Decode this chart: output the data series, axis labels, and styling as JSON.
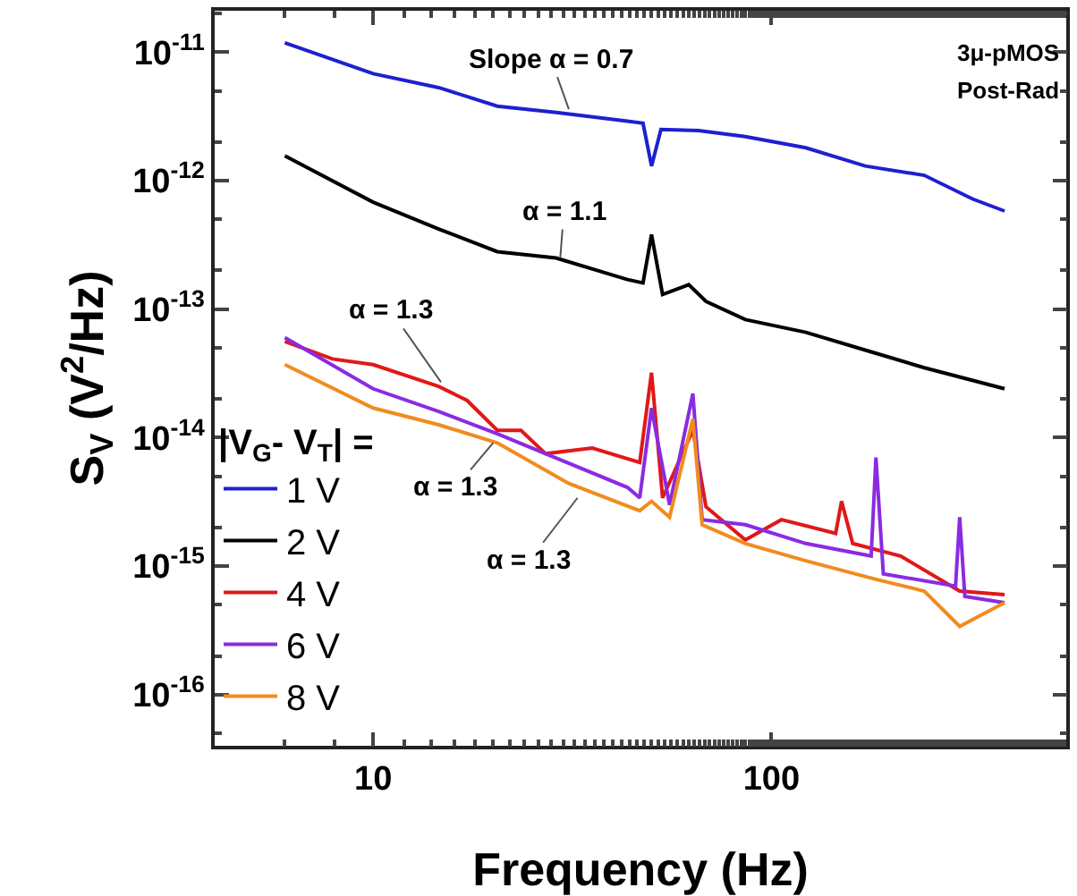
{
  "chart_data": {
    "type": "line",
    "xlabel": "Frequency (Hz)",
    "ylabel": "S$_{V}$ (V$^{2}$/Hz)",
    "legend_title": "|V$_{G}$- V$_{T}$| =",
    "legend": "bottom left",
    "log": "xy",
    "grid": false,
    "marker": "none",
    "line_style": "solid",
    "xlim": [
      4,
      550
    ],
    "xticks": [
      10,
      100
    ],
    "ylim": [
      4e-17,
      2.1e-11
    ],
    "yticks": [
      {
        "value": 1e-11,
        "label": "10$^{-11}$"
      },
      {
        "value": 1e-12,
        "label": "10$^{-12}$"
      },
      {
        "value": 1e-13,
        "label": "10$^{-13}$"
      },
      {
        "value": 1e-14,
        "label": "10$^{-14}$"
      },
      {
        "value": 1e-15,
        "label": "10$^{-15}$"
      },
      {
        "value": 1e-16,
        "label": "10$^{-16}$"
      }
    ],
    "annotations": [
      {
        "text": "Slope α = 0.7",
        "x": 31,
        "y": 3.6e-12
      },
      {
        "text": "α = 1.1",
        "x": 29.5,
        "y": 2.5e-13
      },
      {
        "text": "α = 1.3",
        "x": 14.8,
        "y": 2.7e-14
      },
      {
        "text": "α = 1.3",
        "x": 20,
        "y": 9.1e-15
      },
      {
        "text": "α = 1.3",
        "x": 32.6,
        "y": 3.4e-15
      },
      "3μ-pMOS",
      "Post-Rad"
    ],
    "series": [
      {
        "name": "1 V",
        "color": "#1f1fd0",
        "x": [
          6,
          10,
          14.6,
          20.5,
          28.8,
          43.5,
          47.6,
          50,
          52.8,
          65.6,
          86,
          122,
          172,
          242,
          320,
          385
        ],
        "values": [
          1.18e-11,
          6.8e-12,
          5.3e-12,
          3.8e-12,
          3.4e-12,
          2.9e-12,
          2.8e-12,
          1.3e-12,
          2.5e-12,
          2.45e-12,
          2.2e-12,
          1.8e-12,
          1.3e-12,
          1.1e-12,
          7.2e-13,
          5.8e-13
        ]
      },
      {
        "name": "2 V",
        "color": "#000000",
        "x": [
          6,
          10,
          14.6,
          20.5,
          28.8,
          43.5,
          47.6,
          50,
          53.3,
          62,
          68.5,
          86,
          122,
          172,
          242,
          385
        ],
        "values": [
          1.56e-12,
          6.8e-13,
          4.2e-13,
          2.8e-13,
          2.5e-13,
          1.7e-13,
          1.6e-13,
          3.8e-13,
          1.3e-13,
          1.55e-13,
          1.15e-13,
          8.3e-14,
          6.6e-14,
          4.8e-14,
          3.5e-14,
          2.4e-14
        ]
      },
      {
        "name": "4 V",
        "color": "#e01818",
        "x": [
          6,
          7.9,
          10,
          14.6,
          17.2,
          20.5,
          23.5,
          27.1,
          35.5,
          46.7,
          50,
          53.3,
          63.5,
          68.5,
          86,
          106,
          145,
          150,
          160,
          211,
          297,
          385
        ],
        "values": [
          5.6e-14,
          4.1e-14,
          3.7e-14,
          2.5e-14,
          1.95e-14,
          1.14e-14,
          1.14e-14,
          7.5e-15,
          8.3e-15,
          6.4e-15,
          3.2e-14,
          3.4e-15,
          1.14e-14,
          2.9e-15,
          1.6e-15,
          2.3e-15,
          1.8e-15,
          3.2e-15,
          1.5e-15,
          1.2e-15,
          6.4e-16,
          6e-16
        ]
      },
      {
        "name": "6 V",
        "color": "#8a2be2",
        "x": [
          6,
          10,
          14.6,
          20.5,
          27.1,
          43.5,
          46.7,
          50,
          55.5,
          63.5,
          67,
          86,
          122,
          178,
          183,
          191,
          290,
          297,
          306,
          385
        ],
        "values": [
          6e-14,
          2.4e-14,
          1.6e-14,
          1.07e-14,
          7.5e-15,
          4.1e-15,
          3.4e-15,
          1.7e-14,
          3e-15,
          2.2e-14,
          2.3e-15,
          2.1e-15,
          1.5e-15,
          1.2e-15,
          7e-15,
          8.7e-16,
          7e-16,
          2.4e-15,
          5.8e-16,
          5.2e-16
        ]
      },
      {
        "name": "8 V",
        "color": "#f08c1e",
        "x": [
          6,
          10,
          14.6,
          20.5,
          31,
          46.7,
          50,
          55.5,
          63.5,
          67,
          86,
          122,
          183,
          242,
          297,
          385
        ],
        "values": [
          3.7e-14,
          1.7e-14,
          1.26e-14,
          9.1e-15,
          4.4e-15,
          2.7e-15,
          3.2e-15,
          2.4e-15,
          1.4e-14,
          2.1e-15,
          1.5e-15,
          1.1e-15,
          7.9e-16,
          6.4e-16,
          3.4e-16,
          5.2e-16
        ]
      }
    ]
  }
}
